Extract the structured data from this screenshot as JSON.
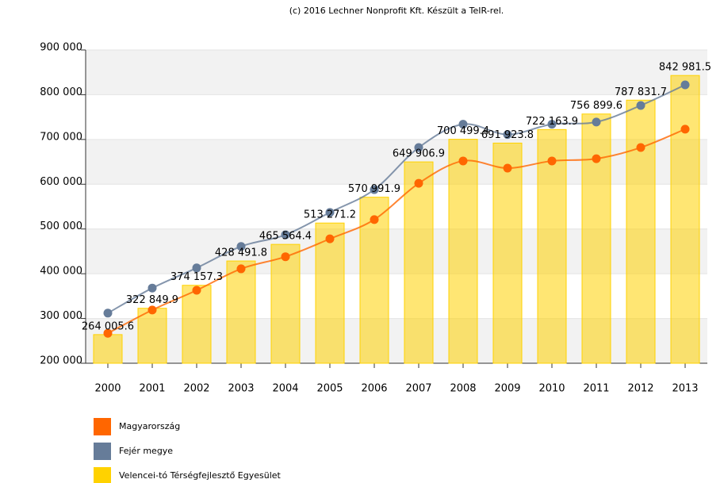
{
  "chart_data": {
    "type": "bar",
    "title": "(c) 2016 Lechner Nonprofit Kft. Készült a TeIR-rel.",
    "categories": [
      "2000",
      "2001",
      "2002",
      "2003",
      "2004",
      "2005",
      "2006",
      "2007",
      "2008",
      "2009",
      "2010",
      "2011",
      "2012",
      "2013"
    ],
    "ylim": [
      200000,
      900000
    ],
    "yticks": [
      {
        "value": 200000,
        "label": "200 000"
      },
      {
        "value": 300000,
        "label": "300 000"
      },
      {
        "value": 400000,
        "label": "400 000"
      },
      {
        "value": 500000,
        "label": "500 000"
      },
      {
        "value": 600000,
        "label": "600 000"
      },
      {
        "value": 700000,
        "label": "700 000"
      },
      {
        "value": 800000,
        "label": "800 000"
      },
      {
        "value": 900000,
        "label": "900 000"
      }
    ],
    "grid": true,
    "legend": "bottom-left",
    "series": [
      {
        "name": "Magyarország",
        "type": "line",
        "color": "#ff6600",
        "values": [
          267000,
          319000,
          363000,
          411000,
          438000,
          478000,
          521000,
          602000,
          652000,
          636000,
          652000,
          657000,
          682000,
          723000
        ]
      },
      {
        "name": "Fejér megye",
        "type": "line",
        "color": "#667c99",
        "values": [
          312000,
          368000,
          413000,
          461000,
          487000,
          537000,
          588000,
          682000,
          734000,
          711000,
          734000,
          739000,
          776000,
          822000
        ]
      },
      {
        "name": "Velencei-tó Térségfejlesztő Egyesület",
        "type": "bar",
        "color": "#ffd200",
        "values": [
          264005.6,
          322849.9,
          374157.3,
          428491.8,
          465564.4,
          513271.2,
          570991.9,
          649906.9,
          700499.4,
          691923.8,
          722163.9,
          756899.6,
          787831.7,
          842981.5
        ],
        "value_labels": [
          "264 005.6",
          "322 849.9",
          "374 157.3",
          "428 491.8",
          "465 564.4",
          "513 271.2",
          "570 991.9",
          "649 906.9",
          "700 499.4",
          "691 923.8",
          "722 163.9",
          "756 899.6",
          "787 831.7",
          "842 981.5"
        ]
      }
    ]
  }
}
